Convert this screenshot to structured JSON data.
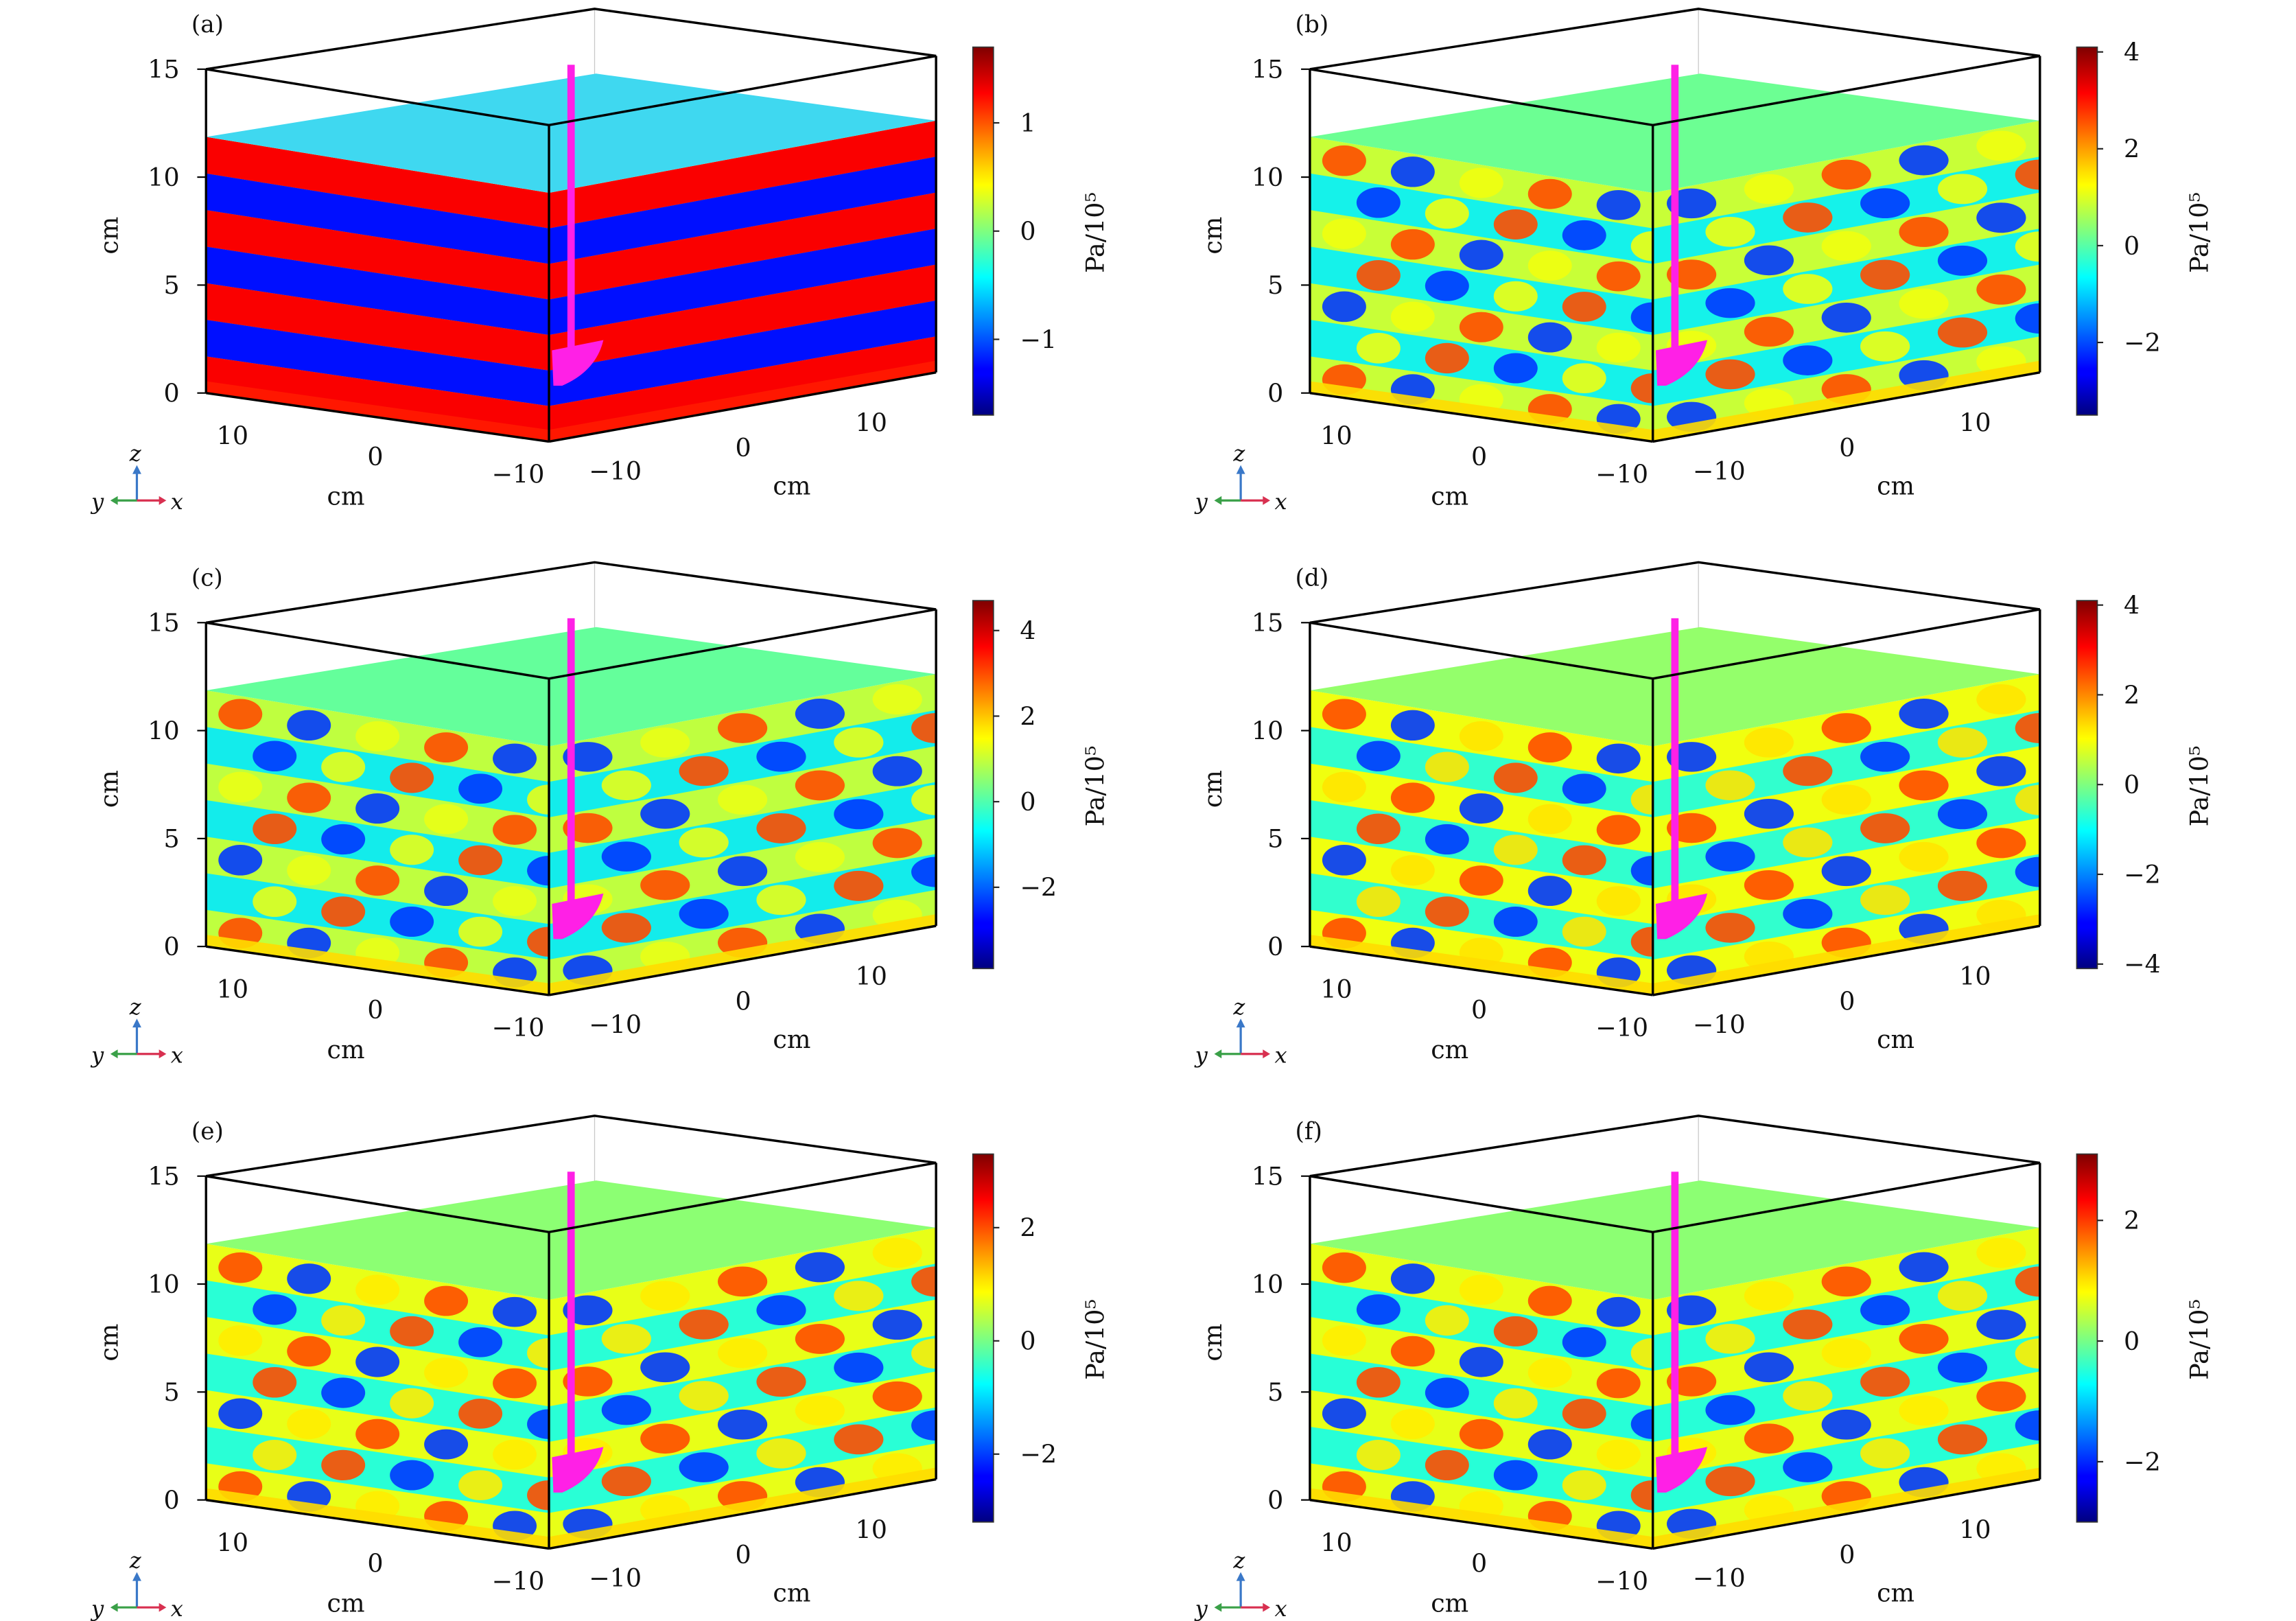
{
  "figure": {
    "colormap": "jet",
    "colors": {
      "magenta": "#ff20e6",
      "frame": "#000000",
      "grid": "#c8c8c8",
      "axis_z": "#3a78c8",
      "axis_x": "#d83050",
      "axis_y": "#3aa048"
    }
  },
  "chart_data": [
    {
      "type": "heatmap",
      "panel_label": "(a)",
      "z_ticks": [
        "0",
        "5",
        "10",
        "15"
      ],
      "z_label": "cm",
      "y_ticks": [
        "10",
        "0",
        "−10"
      ],
      "y_label": "cm",
      "x_ticks": [
        "−10",
        "0",
        "10"
      ],
      "x_label": "cm",
      "zlim": [
        0,
        15
      ],
      "xlim": [
        -13,
        13
      ],
      "ylim": [
        -13,
        13
      ],
      "liquid_level": 12,
      "colorbar_ticks": [
        1,
        0,
        -1
      ],
      "colorbar_tick_labels": [
        "1",
        "0",
        "−1"
      ],
      "colorbar_range": [
        -1.7,
        1.7
      ],
      "colorbar_label": "Pa/10⁵",
      "triad": {
        "z": "z",
        "y": "y",
        "x": "x"
      }
    },
    {
      "type": "heatmap",
      "panel_label": "(b)",
      "z_ticks": [
        "0",
        "5",
        "10",
        "15"
      ],
      "z_label": "cm",
      "y_ticks": [
        "10",
        "0",
        "−10"
      ],
      "y_label": "cm",
      "x_ticks": [
        "−10",
        "0",
        "10"
      ],
      "x_label": "cm",
      "zlim": [
        0,
        15
      ],
      "xlim": [
        -13,
        13
      ],
      "ylim": [
        -13,
        13
      ],
      "liquid_level": 12,
      "colorbar_ticks": [
        4,
        2,
        0,
        -2
      ],
      "colorbar_tick_labels": [
        "4",
        "2",
        "0",
        "−2"
      ],
      "colorbar_range": [
        -3.5,
        4.1
      ],
      "colorbar_label": "Pa/10⁵",
      "triad": {
        "z": "z",
        "y": "y",
        "x": "x"
      }
    },
    {
      "type": "heatmap",
      "panel_label": "(c)",
      "z_ticks": [
        "0",
        "5",
        "10",
        "15"
      ],
      "z_label": "cm",
      "y_ticks": [
        "10",
        "0",
        "−10"
      ],
      "y_label": "cm",
      "x_ticks": [
        "−10",
        "0",
        "10"
      ],
      "x_label": "cm",
      "zlim": [
        0,
        15
      ],
      "xlim": [
        -13,
        13
      ],
      "ylim": [
        -13,
        13
      ],
      "liquid_level": 12,
      "colorbar_ticks": [
        4,
        2,
        0,
        -2
      ],
      "colorbar_tick_labels": [
        "4",
        "2",
        "0",
        "−2"
      ],
      "colorbar_range": [
        -3.9,
        4.7
      ],
      "colorbar_label": "Pa/10⁵",
      "triad": {
        "z": "z",
        "y": "y",
        "x": "x"
      }
    },
    {
      "type": "heatmap",
      "panel_label": "(d)",
      "z_ticks": [
        "0",
        "5",
        "10",
        "15"
      ],
      "z_label": "cm",
      "y_ticks": [
        "10",
        "0",
        "−10"
      ],
      "y_label": "cm",
      "x_ticks": [
        "−10",
        "0",
        "10"
      ],
      "x_label": "cm",
      "zlim": [
        0,
        15
      ],
      "xlim": [
        -13,
        13
      ],
      "ylim": [
        -13,
        13
      ],
      "liquid_level": 12,
      "colorbar_ticks": [
        4,
        2,
        0,
        -2,
        -4
      ],
      "colorbar_tick_labels": [
        "4",
        "2",
        "0",
        "−2",
        "−4"
      ],
      "colorbar_range": [
        -4.1,
        4.1
      ],
      "colorbar_label": "Pa/10⁵",
      "triad": {
        "z": "z",
        "y": "y",
        "x": "x"
      }
    },
    {
      "type": "heatmap",
      "panel_label": "(e)",
      "z_ticks": [
        "0",
        "5",
        "10",
        "15"
      ],
      "z_label": "cm",
      "y_ticks": [
        "10",
        "0",
        "−10"
      ],
      "y_label": "cm",
      "x_ticks": [
        "−10",
        "0",
        "10"
      ],
      "x_label": "cm",
      "zlim": [
        0,
        15
      ],
      "xlim": [
        -13,
        13
      ],
      "ylim": [
        -13,
        13
      ],
      "liquid_level": 12,
      "colorbar_ticks": [
        2,
        0,
        -2
      ],
      "colorbar_tick_labels": [
        "2",
        "0",
        "−2"
      ],
      "colorbar_range": [
        -3.2,
        3.3
      ],
      "colorbar_label": "Pa/10⁵",
      "triad": {
        "z": "z",
        "y": "y",
        "x": "x"
      }
    },
    {
      "type": "heatmap",
      "panel_label": "(f)",
      "z_ticks": [
        "0",
        "5",
        "10",
        "15"
      ],
      "z_label": "cm",
      "y_ticks": [
        "10",
        "0",
        "−10"
      ],
      "y_label": "cm",
      "x_ticks": [
        "−10",
        "0",
        "10"
      ],
      "x_label": "cm",
      "zlim": [
        0,
        15
      ],
      "xlim": [
        -13,
        13
      ],
      "ylim": [
        -13,
        13
      ],
      "liquid_level": 12,
      "colorbar_ticks": [
        2,
        0,
        -2
      ],
      "colorbar_tick_labels": [
        "2",
        "0",
        "−2"
      ],
      "colorbar_range": [
        -3.0,
        3.1
      ],
      "colorbar_label": "Pa/10⁵",
      "triad": {
        "z": "z",
        "y": "y",
        "x": "x"
      }
    }
  ]
}
